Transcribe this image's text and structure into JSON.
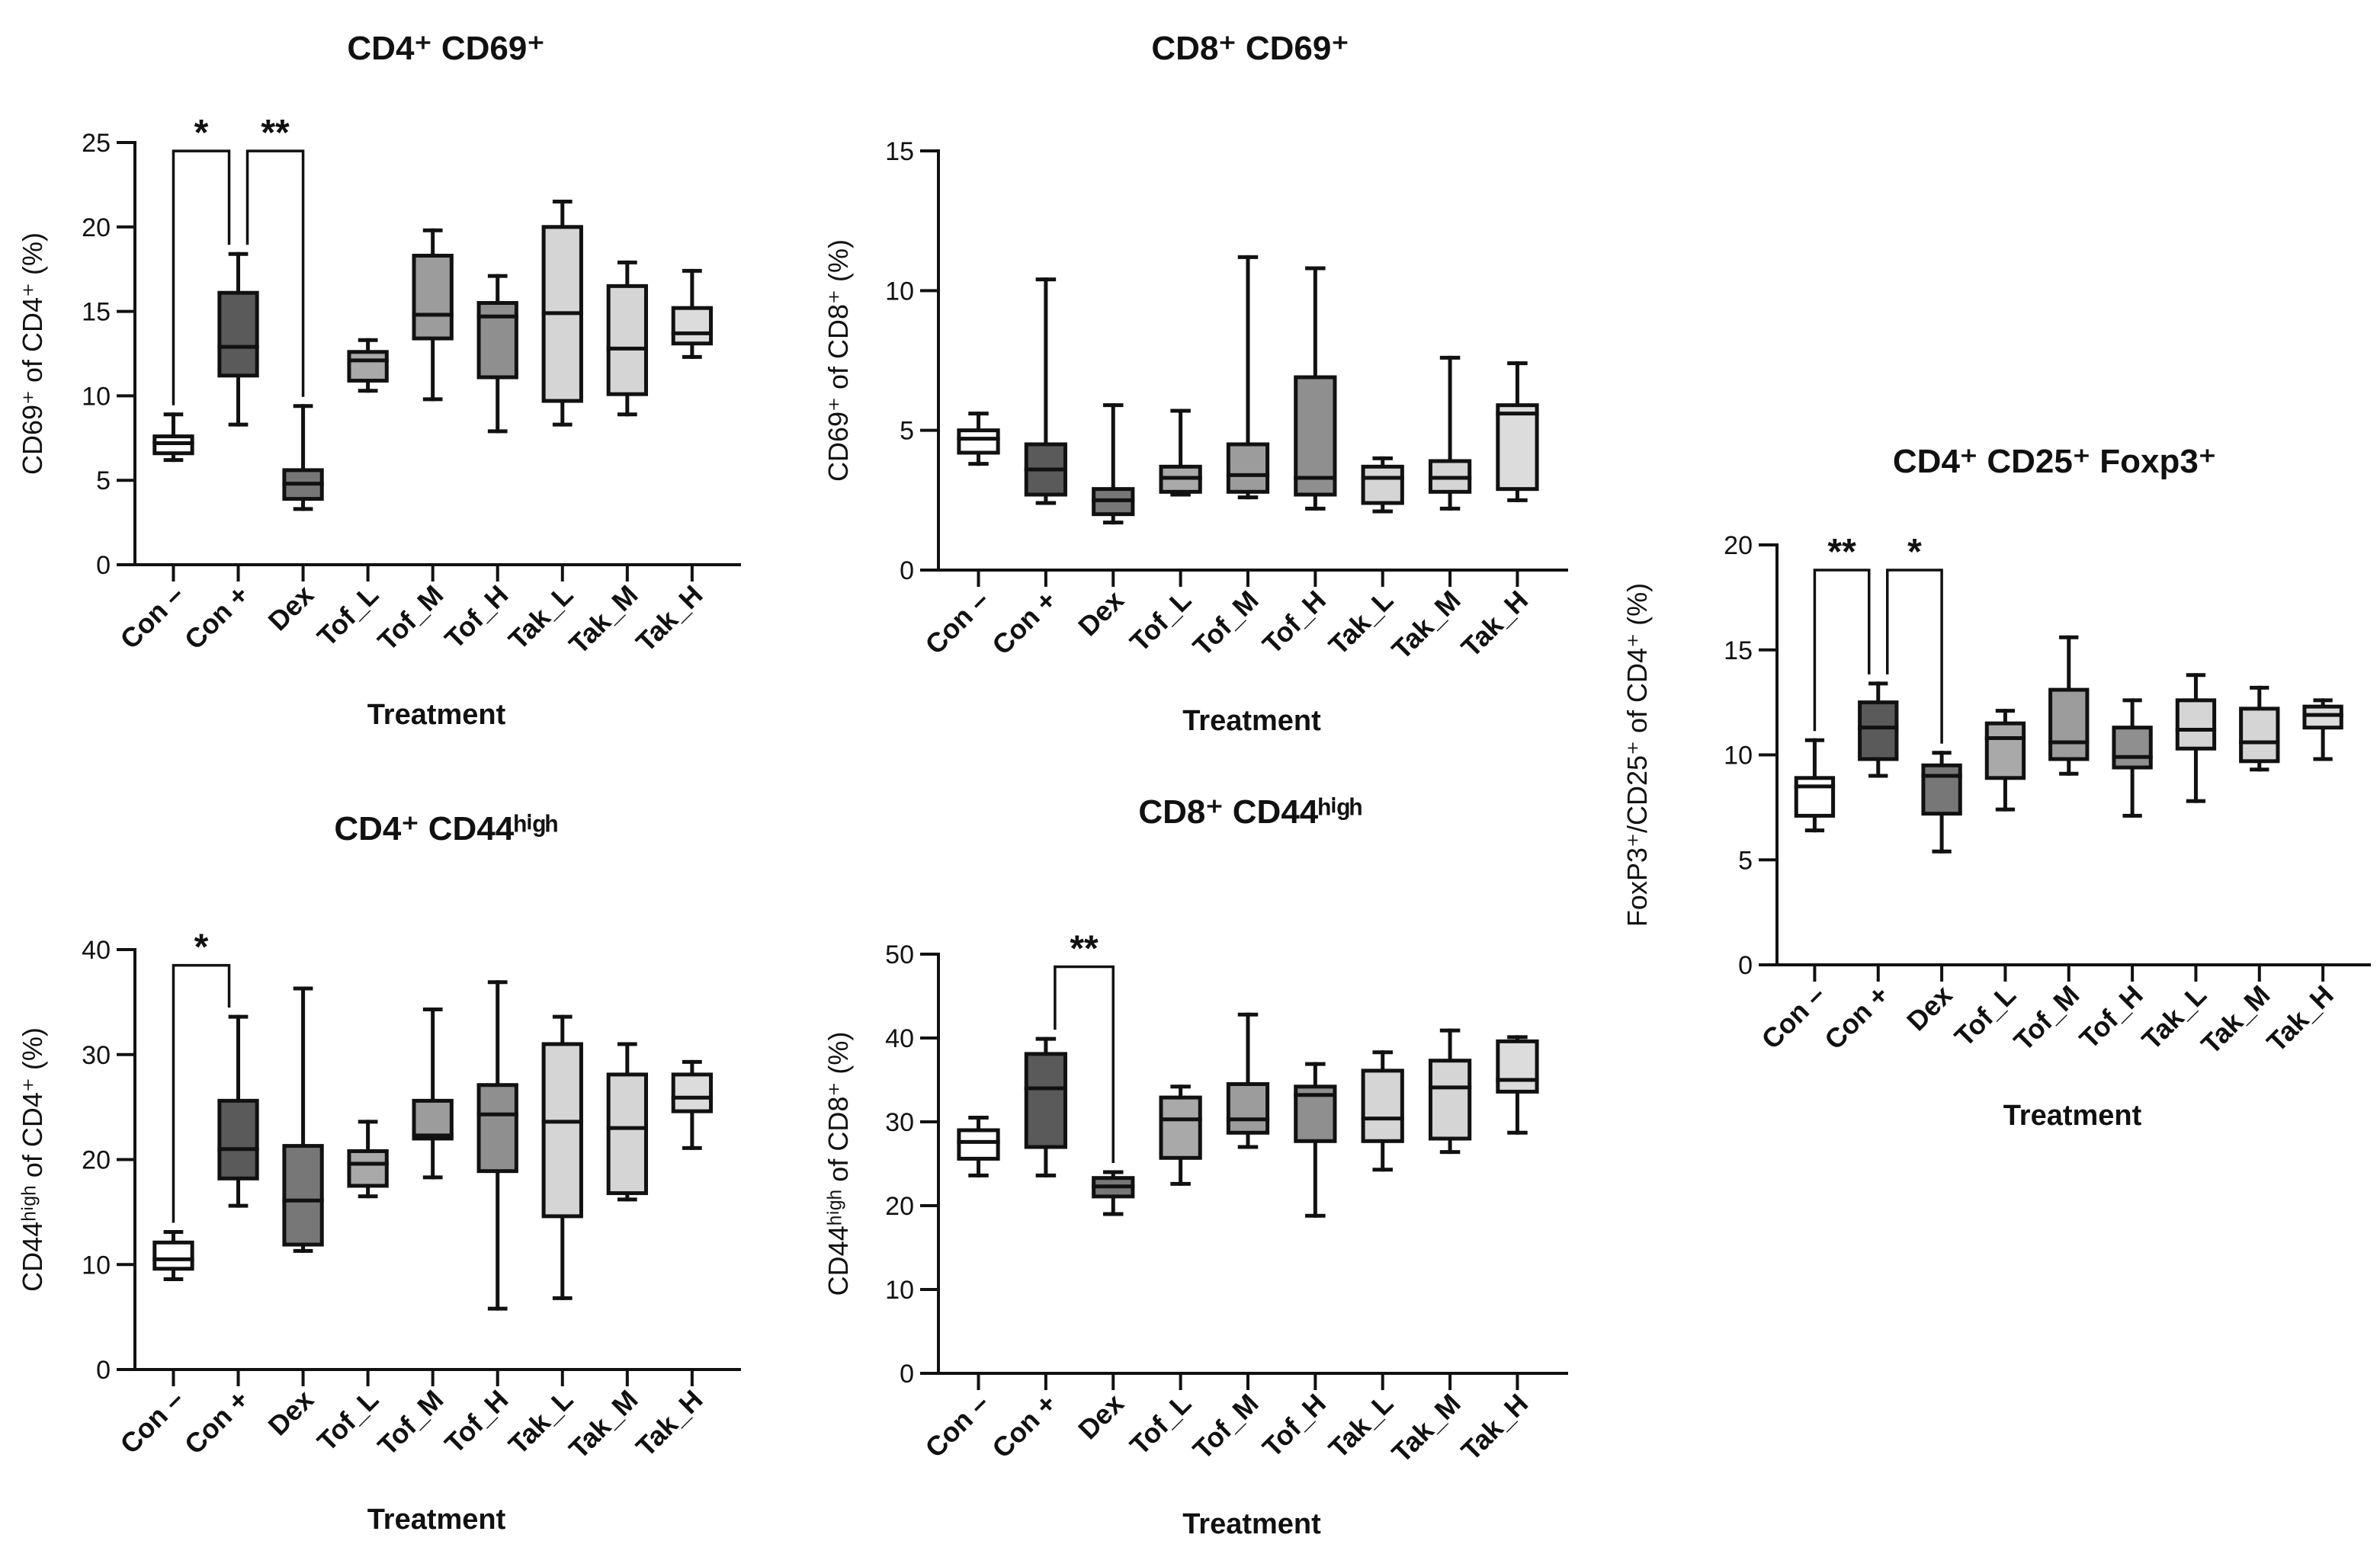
{
  "figure": {
    "xlabel": "Treatment"
  },
  "chart_data": [
    {
      "id": "cd4_cd69",
      "type": "boxplot",
      "title": "CD4⁺ CD69⁺",
      "ylabel": "CD69⁺ of CD4⁺ (%)",
      "xlabel": "Treatment",
      "ylim": [
        0,
        25
      ],
      "yticks": [
        0,
        5,
        10,
        15,
        20,
        25
      ],
      "categories": [
        "Con –",
        "Con +",
        "Dex",
        "Tof_L",
        "Tof_M",
        "Tof_H",
        "Tak_L",
        "Tak_M",
        "Tak_H"
      ],
      "boxes": [
        {
          "min": 6.2,
          "q1": 6.6,
          "median": 7.2,
          "q3": 7.6,
          "max": 8.9
        },
        {
          "min": 8.3,
          "q1": 11.2,
          "median": 12.9,
          "q3": 16.1,
          "max": 18.4
        },
        {
          "min": 3.3,
          "q1": 3.9,
          "median": 4.8,
          "q3": 5.6,
          "max": 9.4
        },
        {
          "min": 10.3,
          "q1": 10.9,
          "median": 12.1,
          "q3": 12.6,
          "max": 13.3
        },
        {
          "min": 9.8,
          "q1": 13.4,
          "median": 14.8,
          "q3": 18.3,
          "max": 19.8
        },
        {
          "min": 7.9,
          "q1": 11.1,
          "median": 14.7,
          "q3": 15.5,
          "max": 17.1
        },
        {
          "min": 8.3,
          "q1": 9.7,
          "median": 14.9,
          "q3": 20.0,
          "max": 21.5
        },
        {
          "min": 8.9,
          "q1": 10.1,
          "median": 12.8,
          "q3": 16.5,
          "max": 17.9
        },
        {
          "min": 12.3,
          "q1": 13.1,
          "median": 13.7,
          "q3": 15.2,
          "max": 17.4
        }
      ],
      "significance": [
        {
          "from": 0,
          "to": 1,
          "label": "*",
          "y": 24.5
        },
        {
          "from": 1,
          "to": 2,
          "label": "**",
          "y": 24.5
        }
      ]
    },
    {
      "id": "cd8_cd69",
      "type": "boxplot",
      "title": "CD8⁺ CD69⁺",
      "ylabel": "CD69⁺ of CD8⁺ (%)",
      "xlabel": "Treatment",
      "ylim": [
        0,
        15
      ],
      "yticks": [
        0,
        5,
        10,
        15
      ],
      "categories": [
        "Con –",
        "Con +",
        "Dex",
        "Tof_L",
        "Tof_M",
        "Tof_H",
        "Tak_L",
        "Tak_M",
        "Tak_H"
      ],
      "boxes": [
        {
          "min": 3.8,
          "q1": 4.2,
          "median": 4.7,
          "q3": 5.0,
          "max": 5.6
        },
        {
          "min": 2.4,
          "q1": 2.7,
          "median": 3.6,
          "q3": 4.5,
          "max": 10.4
        },
        {
          "min": 1.7,
          "q1": 2.0,
          "median": 2.5,
          "q3": 2.9,
          "max": 5.9
        },
        {
          "min": 2.7,
          "q1": 2.8,
          "median": 3.3,
          "q3": 3.7,
          "max": 5.7
        },
        {
          "min": 2.6,
          "q1": 2.8,
          "median": 3.4,
          "q3": 4.5,
          "max": 11.2
        },
        {
          "min": 2.2,
          "q1": 2.7,
          "median": 3.3,
          "q3": 6.9,
          "max": 10.8
        },
        {
          "min": 2.1,
          "q1": 2.4,
          "median": 3.3,
          "q3": 3.7,
          "max": 4.0
        },
        {
          "min": 2.2,
          "q1": 2.8,
          "median": 3.3,
          "q3": 3.9,
          "max": 7.6
        },
        {
          "min": 2.5,
          "q1": 2.9,
          "median": 5.6,
          "q3": 5.9,
          "max": 7.4
        }
      ],
      "significance": []
    },
    {
      "id": "cd4_cd25_foxp3",
      "type": "boxplot",
      "title": "CD4⁺ CD25⁺ Foxp3⁺",
      "ylabel": "FoxP3⁺/CD25⁺ of CD4⁺ (%)",
      "xlabel": "Treatment",
      "ylim": [
        0,
        20
      ],
      "yticks": [
        0,
        5,
        10,
        15,
        20
      ],
      "categories": [
        "Con –",
        "Con +",
        "Dex",
        "Tof_L",
        "Tof_M",
        "Tof_H",
        "Tak_L",
        "Tak_M",
        "Tak_H"
      ],
      "boxes": [
        {
          "min": 6.4,
          "q1": 7.1,
          "median": 8.5,
          "q3": 8.9,
          "max": 10.7
        },
        {
          "min": 9.0,
          "q1": 9.8,
          "median": 11.3,
          "q3": 12.5,
          "max": 13.4
        },
        {
          "min": 5.4,
          "q1": 7.2,
          "median": 9.0,
          "q3": 9.5,
          "max": 10.1
        },
        {
          "min": 7.4,
          "q1": 8.9,
          "median": 10.8,
          "q3": 11.5,
          "max": 12.1
        },
        {
          "min": 9.1,
          "q1": 9.8,
          "median": 10.6,
          "q3": 13.1,
          "max": 15.6
        },
        {
          "min": 7.1,
          "q1": 9.4,
          "median": 9.9,
          "q3": 11.3,
          "max": 12.6
        },
        {
          "min": 7.8,
          "q1": 10.3,
          "median": 11.2,
          "q3": 12.6,
          "max": 13.8
        },
        {
          "min": 9.3,
          "q1": 9.7,
          "median": 10.6,
          "q3": 12.2,
          "max": 13.2
        },
        {
          "min": 9.8,
          "q1": 11.3,
          "median": 11.9,
          "q3": 12.3,
          "max": 12.6
        }
      ],
      "significance": [
        {
          "from": 0,
          "to": 1,
          "label": "**",
          "y": 18.8
        },
        {
          "from": 1,
          "to": 2,
          "label": "*",
          "y": 18.8
        }
      ]
    },
    {
      "id": "cd4_cd44high",
      "type": "boxplot",
      "title": "CD4⁺ CD44ʰⁱᵍʰ",
      "ylabel": "CD44ʰⁱᵍʰ of CD4⁺ (%)",
      "xlabel": "Treatment",
      "ylim": [
        0,
        40
      ],
      "yticks": [
        0,
        10,
        20,
        30,
        40
      ],
      "categories": [
        "Con –",
        "Con +",
        "Dex",
        "Tof_L",
        "Tof_M",
        "Tof_H",
        "Tak_L",
        "Tak_M",
        "Tak_H"
      ],
      "boxes": [
        {
          "min": 8.6,
          "q1": 9.6,
          "median": 10.5,
          "q3": 12.1,
          "max": 13.1
        },
        {
          "min": 15.6,
          "q1": 18.2,
          "median": 21.0,
          "q3": 25.6,
          "max": 33.6
        },
        {
          "min": 11.3,
          "q1": 11.9,
          "median": 16.1,
          "q3": 21.3,
          "max": 36.3
        },
        {
          "min": 16.5,
          "q1": 17.5,
          "median": 19.6,
          "q3": 20.8,
          "max": 23.6
        },
        {
          "min": 18.3,
          "q1": 22.0,
          "median": 22.3,
          "q3": 25.6,
          "max": 34.3
        },
        {
          "min": 5.8,
          "q1": 18.9,
          "median": 24.3,
          "q3": 27.1,
          "max": 36.9
        },
        {
          "min": 6.8,
          "q1": 14.6,
          "median": 23.6,
          "q3": 31.0,
          "max": 33.6
        },
        {
          "min": 16.2,
          "q1": 16.8,
          "median": 23.0,
          "q3": 28.1,
          "max": 31.0
        },
        {
          "min": 21.1,
          "q1": 24.6,
          "median": 25.9,
          "q3": 28.1,
          "max": 29.3
        }
      ],
      "significance": [
        {
          "from": 0,
          "to": 1,
          "label": "*",
          "y": 38.5
        }
      ]
    },
    {
      "id": "cd8_cd44high",
      "type": "boxplot",
      "title": "CD8⁺ CD44ʰⁱᵍʰ",
      "ylabel": "CD44ʰⁱᵍʰ of CD8⁺ (%)",
      "xlabel": "Treatment",
      "ylim": [
        0,
        50
      ],
      "yticks": [
        0,
        10,
        20,
        30,
        40,
        50
      ],
      "categories": [
        "Con –",
        "Con +",
        "Dex",
        "Tof_L",
        "Tof_M",
        "Tof_H",
        "Tak_L",
        "Tak_M",
        "Tak_H"
      ],
      "boxes": [
        {
          "min": 23.6,
          "q1": 25.6,
          "median": 27.6,
          "q3": 29.0,
          "max": 30.5
        },
        {
          "min": 23.6,
          "q1": 27.0,
          "median": 34.0,
          "q3": 38.1,
          "max": 39.9
        },
        {
          "min": 19.0,
          "q1": 21.1,
          "median": 22.3,
          "q3": 23.3,
          "max": 24.0
        },
        {
          "min": 22.6,
          "q1": 25.7,
          "median": 30.3,
          "q3": 32.9,
          "max": 34.2
        },
        {
          "min": 27.0,
          "q1": 28.7,
          "median": 30.3,
          "q3": 34.5,
          "max": 42.8
        },
        {
          "min": 18.8,
          "q1": 27.7,
          "median": 33.2,
          "q3": 34.2,
          "max": 36.9
        },
        {
          "min": 24.3,
          "q1": 27.7,
          "median": 30.4,
          "q3": 36.1,
          "max": 38.3
        },
        {
          "min": 26.4,
          "q1": 28.0,
          "median": 34.1,
          "q3": 37.3,
          "max": 40.9
        },
        {
          "min": 28.7,
          "q1": 33.6,
          "median": 35.0,
          "q3": 39.6,
          "max": 40.1
        }
      ],
      "significance": [
        {
          "from": 1,
          "to": 2,
          "label": "**",
          "y": 48.5
        }
      ]
    }
  ],
  "colors": {
    "ink": "#111111",
    "fills": [
      "#ffffff",
      "#5a5a5a",
      "#777777",
      "#a9a9a9",
      "#9c9c9c",
      "#8f8f8f",
      "#d5d5d5",
      "#d5d5d5",
      "#dcdcdc"
    ]
  }
}
